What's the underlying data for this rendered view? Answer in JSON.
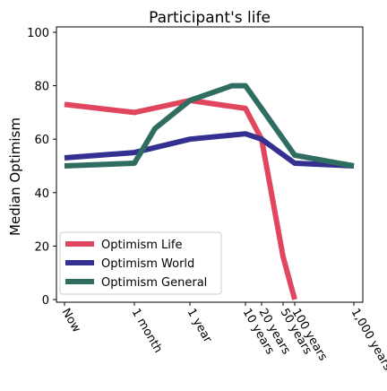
{
  "chart_data": {
    "type": "line",
    "title": "Participant's life",
    "xlabel": "",
    "ylabel": "Median Optimism",
    "x_tick_labels": [
      "Now",
      "1 month",
      "1 year",
      "10 years",
      "20 years",
      "50 years",
      "100 years",
      "1,000 years"
    ],
    "y_ticks": [
      0,
      20,
      40,
      60,
      80,
      100
    ],
    "ylim": [
      -1,
      102
    ],
    "x_scale": "log (time from now; 'Now' at left edge)",
    "legend_position": "lower-left",
    "grid": false,
    "series": [
      {
        "name": "Optimism Life",
        "color": "#e0475f",
        "points": [
          {
            "x": "Now",
            "y": 73
          },
          {
            "x": "1 month",
            "y": 70
          },
          {
            "x": "1 year",
            "y": 74.5
          },
          {
            "x": "10 years",
            "y": 71.5
          },
          {
            "x": "20 years",
            "y": 60
          },
          {
            "x": "50 years",
            "y": 16
          },
          {
            "x": "100 years",
            "y": 0
          }
        ]
      },
      {
        "name": "Optimism World",
        "color": "#343091",
        "points": [
          {
            "x": "Now",
            "y": 53
          },
          {
            "x": "1 month",
            "y": 55
          },
          {
            "x": "1 year",
            "y": 60
          },
          {
            "x": "10 years",
            "y": 62
          },
          {
            "x": "20 years",
            "y": 60
          },
          {
            "x": "100 years",
            "y": 51
          },
          {
            "x": "1,000 years",
            "y": 50
          }
        ]
      },
      {
        "name": "Optimism General",
        "color": "#2f6d60",
        "points": [
          {
            "x": "Now",
            "y": 50
          },
          {
            "x": "1 month",
            "y": 51
          },
          {
            "x": "1 month+",
            "y": 64
          },
          {
            "x": "1 year",
            "y": 74.5
          },
          {
            "x": "10 years-",
            "y": 80
          },
          {
            "x": "10 years",
            "y": 80
          },
          {
            "x": "100 years",
            "y": 54
          },
          {
            "x": "1,000 years",
            "y": 50
          }
        ]
      }
    ]
  }
}
